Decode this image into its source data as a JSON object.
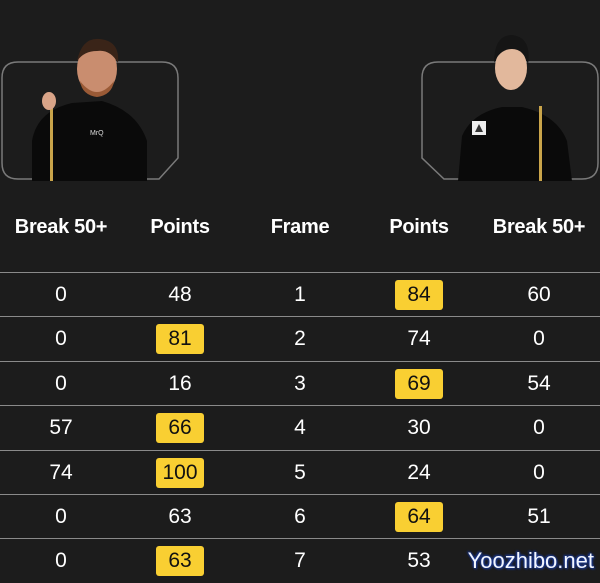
{
  "players": {
    "left": {
      "photo": "player-photo-left",
      "shirt_logo": "MrQ"
    },
    "right": {
      "photo": "player-photo-right"
    }
  },
  "header": {
    "columns": [
      "Break 50+",
      "Points",
      "Frame",
      "Points",
      "Break 50+"
    ]
  },
  "rows": [
    {
      "left_break": "0",
      "left_points": "48",
      "frame": "1",
      "right_points": "84",
      "right_break": "60",
      "winner": "right"
    },
    {
      "left_break": "0",
      "left_points": "81",
      "frame": "2",
      "right_points": "74",
      "right_break": "0",
      "winner": "left"
    },
    {
      "left_break": "0",
      "left_points": "16",
      "frame": "3",
      "right_points": "69",
      "right_break": "54",
      "winner": "right"
    },
    {
      "left_break": "57",
      "left_points": "66",
      "frame": "4",
      "right_points": "30",
      "right_break": "0",
      "winner": "left"
    },
    {
      "left_break": "74",
      "left_points": "100",
      "frame": "5",
      "right_points": "24",
      "right_break": "0",
      "winner": "left"
    },
    {
      "left_break": "0",
      "left_points": "63",
      "frame": "6",
      "right_points": "64",
      "right_break": "51",
      "winner": "right"
    },
    {
      "left_break": "0",
      "left_points": "63",
      "frame": "7",
      "right_points": "53",
      "right_break": "",
      "winner": "left"
    }
  ],
  "colors": {
    "background": "#1c1c1c",
    "winner_highlight": "#f9cf32",
    "divider": "#8a8a8a"
  },
  "watermark": "Yoozhibo.net"
}
